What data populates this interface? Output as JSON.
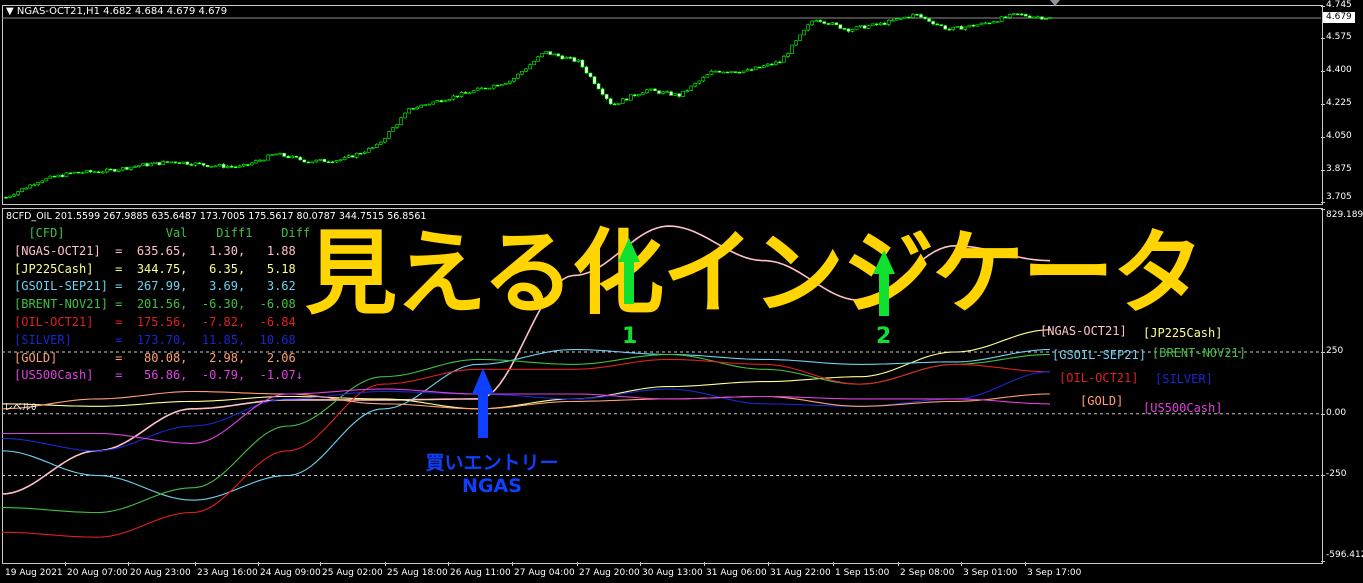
{
  "main_chart": {
    "title": "NGAS-OCT21,H1  4.682 4.684 4.679 4.679",
    "current_price": "4.679",
    "price_axis": [
      "4.745",
      "4.575",
      "4.400",
      "4.225",
      "4.050",
      "3.875",
      "3.705"
    ],
    "price_range": [
      3.705,
      4.745
    ],
    "candle_color": "#00ff00",
    "approx_closes": [
      3.73,
      3.82,
      3.86,
      3.87,
      3.9,
      3.92,
      3.9,
      3.89,
      3.96,
      3.92,
      3.93,
      4.0,
      4.2,
      4.25,
      4.3,
      4.35,
      4.5,
      4.45,
      4.22,
      4.3,
      4.27,
      4.4,
      4.4,
      4.45,
      4.68,
      4.62,
      4.65,
      4.7,
      4.62,
      4.65,
      4.7,
      4.68
    ]
  },
  "indicator": {
    "title": "8CFD_OIL 201.5599 267.9885 635.6487 173.7005 175.5617 80.0787 344.7515 56.8561",
    "axis": [
      "829.1891",
      "250",
      "0.00",
      "-250",
      "-596.412"
    ],
    "range": [
      -596.412,
      829.1891
    ],
    "table_header": {
      "name": "[CFD]",
      "val": "Val",
      "diff1": "Diff1",
      "diff2": "Diff"
    },
    "rows": [
      {
        "name": "[NGAS-OCT21]",
        "val": "635.65",
        "d1": "1.30",
        "d2": "1.88",
        "color": "#ffc0c8"
      },
      {
        "name": "[JP225Cash]",
        "val": "344.75",
        "d1": "6.35",
        "d2": "5.18",
        "color": "#ffff90"
      },
      {
        "name": "[GSOIL-SEP21]",
        "val": "267.99",
        "d1": "3.69",
        "d2": "3.62",
        "color": "#70d0f0"
      },
      {
        "name": "[BRENT-NOV21]",
        "val": "201.56",
        "d1": "-6.30",
        "d2": "-6.08",
        "color": "#40c040"
      },
      {
        "name": "[OIL-OCT21]",
        "val": "175.56",
        "d1": "-7.82",
        "d2": "-6.84",
        "color": "#e02020"
      },
      {
        "name": "[SILVER]",
        "val": "173.70",
        "d1": "11.85",
        "d2": "10.68",
        "color": "#1828d0"
      },
      {
        "name": "[GOLD]",
        "val": "80.08",
        "d1": "2.98",
        "d2": "2.06",
        "color": "#ffa070"
      },
      {
        "name": "[US500Cash]",
        "val": "56.86",
        "d1": "-0.79",
        "d2": "-1.07",
        "color": "#e040e0"
      }
    ],
    "down_arrow": "↓",
    "level_label": "レベル0",
    "series_points": {
      "NGAS": [
        -325,
        -150,
        20,
        56,
        56,
        60,
        560,
        760,
        620,
        460,
        680,
        620
      ],
      "JP225": [
        40,
        30,
        50,
        70,
        60,
        20,
        60,
        110,
        130,
        150,
        250,
        340
      ],
      "GSOIL": [
        -150,
        -250,
        -350,
        -250,
        20,
        200,
        260,
        240,
        220,
        200,
        210,
        260
      ],
      "BRENT": [
        -380,
        -400,
        -300,
        -50,
        150,
        220,
        200,
        240,
        180,
        120,
        200,
        240
      ],
      "OIL": [
        -480,
        -500,
        -400,
        -150,
        120,
        180,
        180,
        220,
        200,
        120,
        200,
        170
      ],
      "SILVER": [
        -100,
        -150,
        -50,
        60,
        90,
        80,
        60,
        100,
        40,
        30,
        60,
        170
      ],
      "GOLD": [
        20,
        60,
        90,
        80,
        40,
        20,
        50,
        60,
        70,
        30,
        50,
        80
      ],
      "US500": [
        -80,
        -80,
        -120,
        80,
        100,
        80,
        80,
        60,
        70,
        60,
        60,
        40
      ]
    },
    "right_labels": {
      "ngas": "[NGAS-OCT21]",
      "jp225": "[JP225Cash]",
      "gsoil": "[GSOIL-SEP21]",
      "brent": "[BRENT-NOV21]",
      "oil": "[OIL-OCT21]",
      "silver": "[SILVER]",
      "gold": "[GOLD]",
      "us500": "[US500Cash]"
    }
  },
  "time_axis": [
    "19 Aug 2021",
    "20 Aug 07:00",
    "20 Aug 23:00",
    "23 Aug 16:00",
    "24 Aug 09:00",
    "25 Aug 02:00",
    "25 Aug 18:00",
    "26 Aug 11:00",
    "27 Aug 04:00",
    "27 Aug 20:00",
    "30 Aug 13:00",
    "31 Aug 06:00",
    "31 Aug 22:00",
    "1 Sep 15:00",
    "2 Sep 08:00",
    "3 Sep 01:00",
    "3 Sep 17:00"
  ],
  "overlay": {
    "headline": "見える化インジケータ",
    "marker1": "1",
    "marker2": "2",
    "entry_line1": "買いエントリー",
    "entry_line2": "NGAS",
    "headline_color": "#ffd400",
    "marker_color": "#10e030",
    "entry_color": "#1040ff"
  }
}
